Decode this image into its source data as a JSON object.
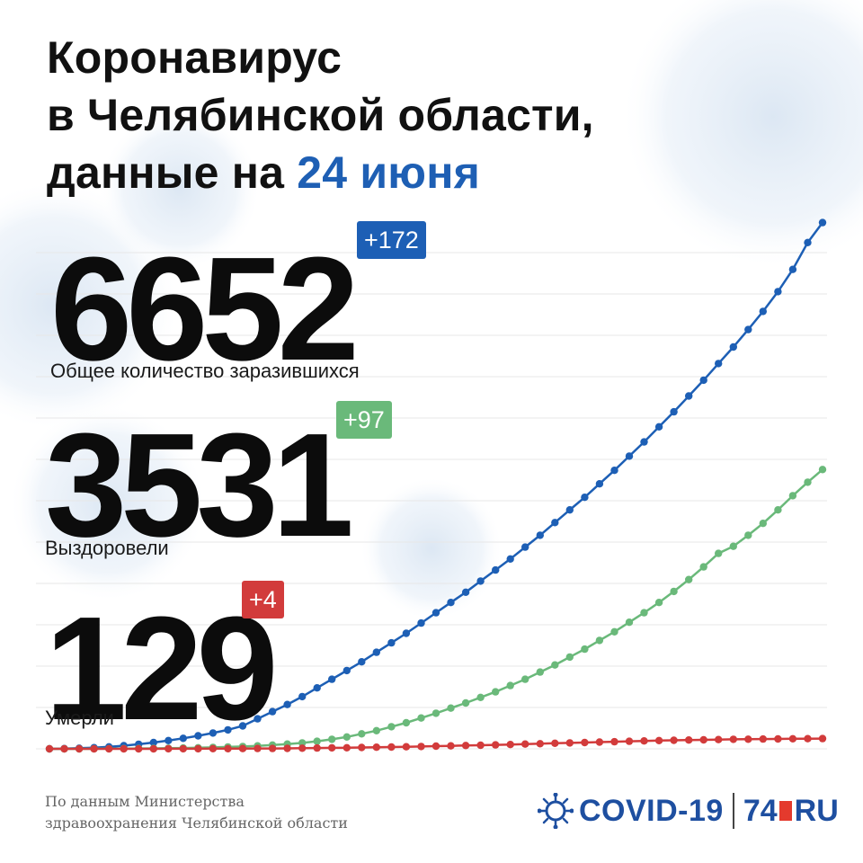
{
  "header": {
    "title_line1": "Коронавирус",
    "title_line2": "в Челябинской области,",
    "title_line3_prefix": "данные на ",
    "title_date": "24 июня"
  },
  "stats": {
    "infected": {
      "value": "6652",
      "delta": "+172",
      "label": "Общее количество заразившихся",
      "color": "#1d5fb5"
    },
    "recovered": {
      "value": "3531",
      "delta": "+97",
      "label": "Выздоровели",
      "color": "#6ab97a"
    },
    "deaths": {
      "value": "129",
      "delta": "+4",
      "label": "Умерли",
      "color": "#d23b3b"
    }
  },
  "footer": {
    "source_line1": "По данным Министерства",
    "source_line2": "здравоохранения Челябинской области",
    "logo_covid": "COVID-19",
    "logo_number": "74",
    "logo_suffix": "RU"
  },
  "chart_data": {
    "type": "line",
    "ylim": [
      0,
      7000
    ],
    "series": [
      {
        "name": "Общее количество заразившихся",
        "color": "#1d5fb5",
        "values": [
          0,
          3,
          8,
          15,
          25,
          40,
          58,
          80,
          105,
          133,
          165,
          200,
          240,
          290,
          380,
          470,
          560,
          660,
          770,
          880,
          990,
          1100,
          1220,
          1340,
          1460,
          1590,
          1720,
          1850,
          1980,
          2120,
          2260,
          2400,
          2550,
          2700,
          2860,
          3020,
          3180,
          3350,
          3520,
          3700,
          3880,
          4070,
          4260,
          4460,
          4660,
          4870,
          5080,
          5300,
          5530,
          5780,
          6060,
          6400,
          6652
        ]
      },
      {
        "name": "Выздоровели",
        "color": "#6ab97a",
        "values": [
          0,
          0,
          0,
          1,
          2,
          3,
          4,
          6,
          8,
          10,
          14,
          18,
          24,
          30,
          38,
          48,
          60,
          75,
          95,
          120,
          150,
          190,
          230,
          280,
          330,
          390,
          450,
          515,
          580,
          650,
          720,
          800,
          880,
          970,
          1060,
          1160,
          1260,
          1370,
          1480,
          1600,
          1720,
          1850,
          1990,
          2140,
          2300,
          2470,
          2560,
          2700,
          2850,
          3020,
          3200,
          3370,
          3531
        ]
      },
      {
        "name": "Умерли",
        "color": "#d23b3b",
        "values": [
          0,
          0,
          0,
          0,
          0,
          0,
          0,
          0,
          1,
          1,
          1,
          2,
          2,
          3,
          4,
          5,
          6,
          8,
          10,
          12,
          14,
          17,
          20,
          23,
          26,
          30,
          34,
          38,
          42,
          46,
          50,
          55,
          60,
          65,
          70,
          75,
          80,
          85,
          90,
          95,
          100,
          104,
          108,
          111,
          114,
          117,
          120,
          122,
          124,
          125,
          127,
          128,
          129
        ]
      }
    ]
  }
}
